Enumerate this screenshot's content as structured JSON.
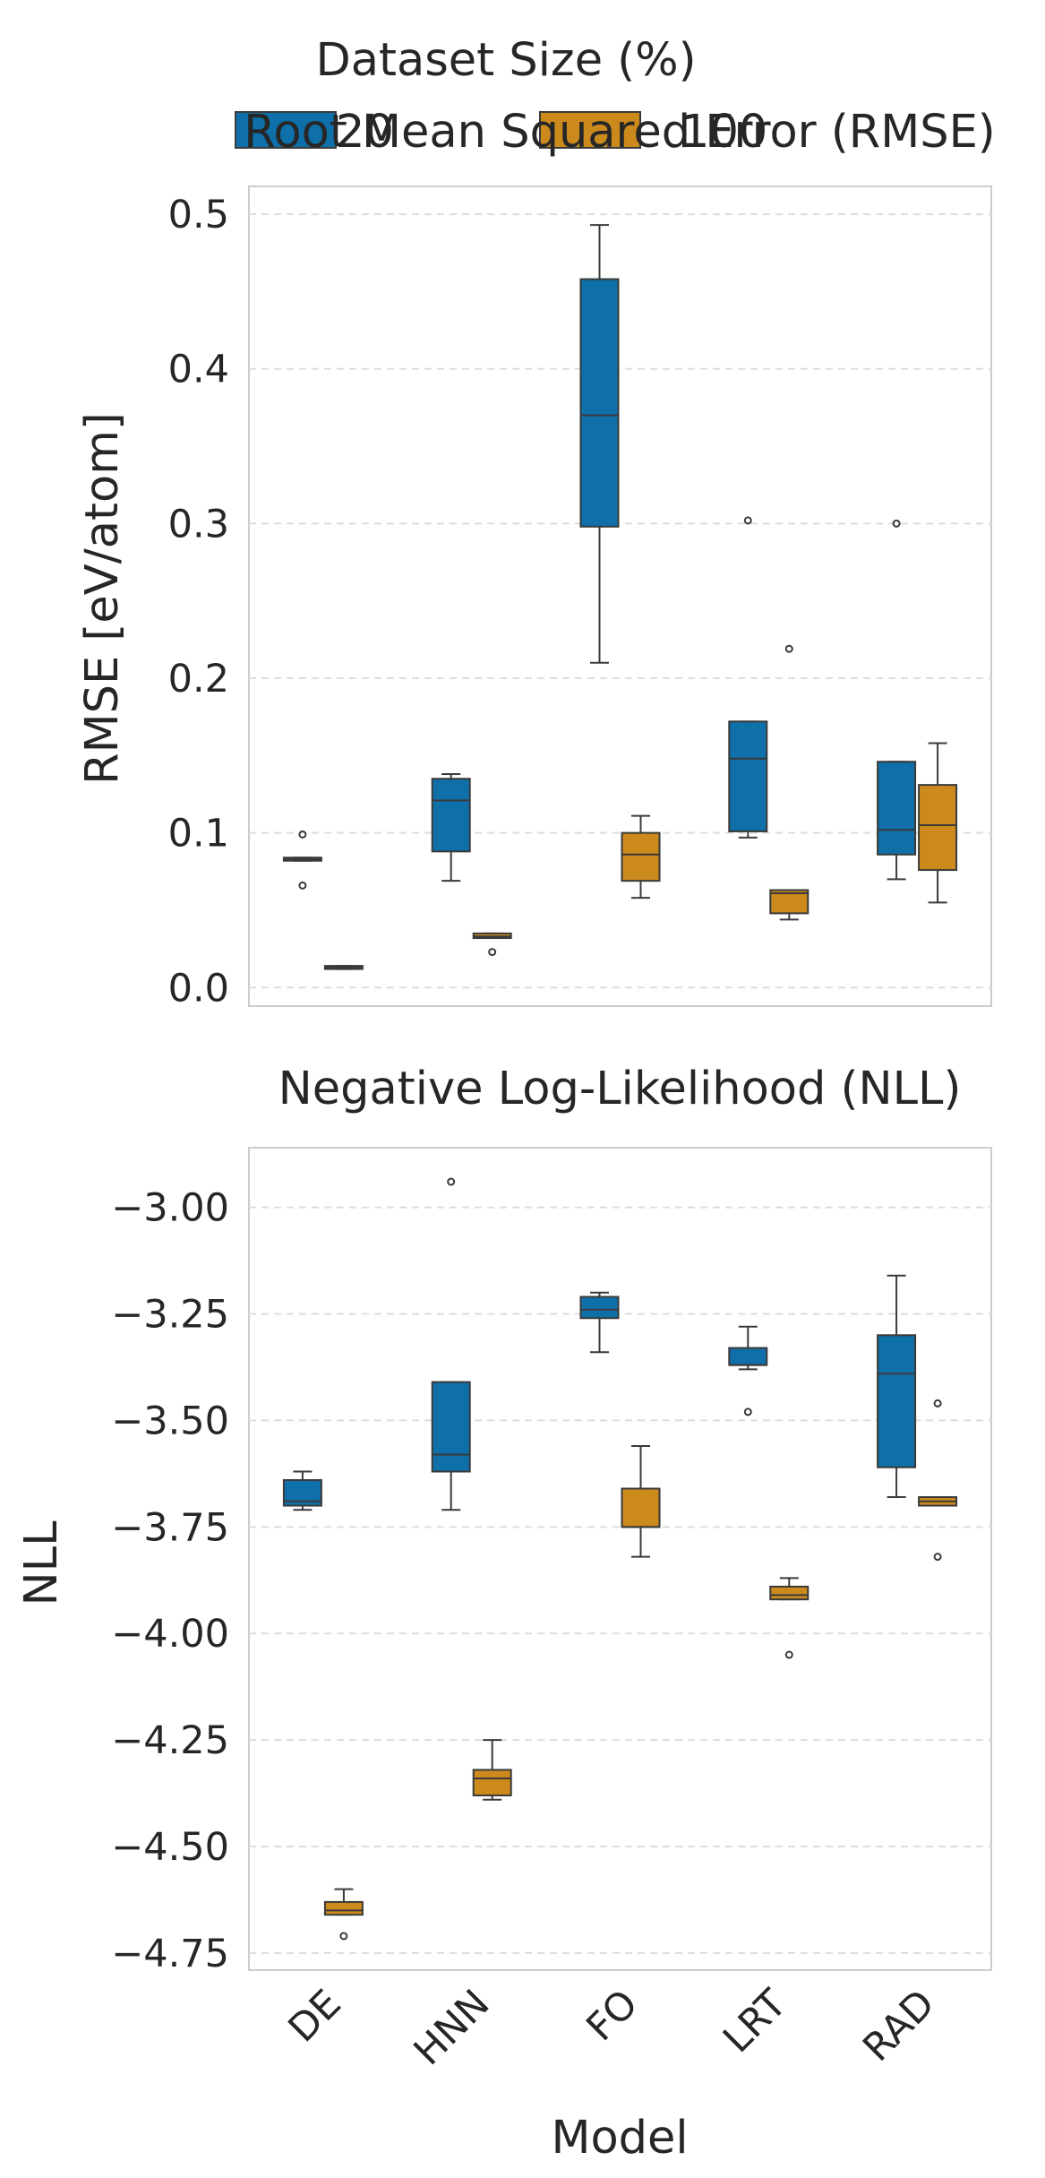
{
  "legend": {
    "title": "Dataset Size (%)",
    "entries": [
      {
        "label": "20",
        "color": "#0f6fa8"
      },
      {
        "label": "100",
        "color": "#cc8a1d"
      }
    ]
  },
  "chart_data": [
    {
      "type": "box",
      "title": "Root Mean Squared Error (RMSE)",
      "xlabel": "",
      "ylabel": "RMSE [eV/atom]",
      "categories": [
        "DE",
        "HNN",
        "FO",
        "LRT",
        "RAD"
      ],
      "ylim": [
        -0.012,
        0.518
      ],
      "yticks": [
        0.0,
        0.1,
        0.2,
        0.3,
        0.4,
        0.5
      ],
      "ytick_labels": [
        "0.0",
        "0.1",
        "0.2",
        "0.3",
        "0.4",
        "0.5"
      ],
      "grid": true,
      "series": [
        {
          "name": "20",
          "color": "#0f6fa8",
          "boxes": [
            {
              "category": "DE",
              "whisker_low": 0.082,
              "q1": 0.082,
              "median": 0.083,
              "q3": 0.084,
              "whisker_high": 0.084,
              "outliers": [
                0.099,
                0.066
              ]
            },
            {
              "category": "HNN",
              "whisker_low": 0.069,
              "q1": 0.088,
              "median": 0.121,
              "q3": 0.135,
              "whisker_high": 0.138,
              "outliers": []
            },
            {
              "category": "FO",
              "whisker_low": 0.21,
              "q1": 0.298,
              "median": 0.37,
              "q3": 0.458,
              "whisker_high": 0.493,
              "outliers": []
            },
            {
              "category": "LRT",
              "whisker_low": 0.097,
              "q1": 0.101,
              "median": 0.148,
              "q3": 0.172,
              "whisker_high": 0.172,
              "outliers": [
                0.302
              ]
            },
            {
              "category": "RAD",
              "whisker_low": 0.07,
              "q1": 0.086,
              "median": 0.102,
              "q3": 0.146,
              "whisker_high": 0.146,
              "outliers": [
                0.3
              ]
            }
          ]
        },
        {
          "name": "100",
          "color": "#cc8a1d",
          "boxes": [
            {
              "category": "DE",
              "whisker_low": 0.012,
              "q1": 0.012,
              "median": 0.013,
              "q3": 0.014,
              "whisker_high": 0.014,
              "outliers": []
            },
            {
              "category": "HNN",
              "whisker_low": 0.032,
              "q1": 0.032,
              "median": 0.033,
              "q3": 0.035,
              "whisker_high": 0.035,
              "outliers": [
                0.023
              ]
            },
            {
              "category": "FO",
              "whisker_low": 0.058,
              "q1": 0.069,
              "median": 0.086,
              "q3": 0.1,
              "whisker_high": 0.111,
              "outliers": []
            },
            {
              "category": "LRT",
              "whisker_low": 0.044,
              "q1": 0.048,
              "median": 0.061,
              "q3": 0.063,
              "whisker_high": 0.063,
              "outliers": [
                0.219
              ]
            },
            {
              "category": "RAD",
              "whisker_low": 0.055,
              "q1": 0.076,
              "median": 0.105,
              "q3": 0.131,
              "whisker_high": 0.158,
              "outliers": []
            }
          ]
        }
      ]
    },
    {
      "type": "box",
      "title": "Negative Log-Likelihood (NLL)",
      "xlabel": "Model",
      "ylabel": "NLL",
      "categories": [
        "DE",
        "HNN",
        "FO",
        "LRT",
        "RAD"
      ],
      "ylim": [
        -4.79,
        -2.86
      ],
      "yticks": [
        -3.0,
        -3.25,
        -3.5,
        -3.75,
        -4.0,
        -4.25,
        -4.5,
        -4.75
      ],
      "ytick_labels": [
        "−3.00",
        "−3.25",
        "−3.50",
        "−3.75",
        "−4.00",
        "−4.25",
        "−4.50",
        "−4.75"
      ],
      "grid": true,
      "series": [
        {
          "name": "20",
          "color": "#0f6fa8",
          "boxes": [
            {
              "category": "DE",
              "whisker_low": -3.71,
              "q1": -3.7,
              "median": -3.69,
              "q3": -3.64,
              "whisker_high": -3.62,
              "outliers": []
            },
            {
              "category": "HNN",
              "whisker_low": -3.71,
              "q1": -3.62,
              "median": -3.58,
              "q3": -3.41,
              "whisker_high": -3.41,
              "outliers": [
                -2.94
              ]
            },
            {
              "category": "FO",
              "whisker_low": -3.34,
              "q1": -3.26,
              "median": -3.24,
              "q3": -3.21,
              "whisker_high": -3.2,
              "outliers": []
            },
            {
              "category": "LRT",
              "whisker_low": -3.38,
              "q1": -3.37,
              "median": -3.37,
              "q3": -3.33,
              "whisker_high": -3.28,
              "outliers": [
                -3.48
              ]
            },
            {
              "category": "RAD",
              "whisker_low": -3.68,
              "q1": -3.61,
              "median": -3.39,
              "q3": -3.3,
              "whisker_high": -3.16,
              "outliers": []
            }
          ]
        },
        {
          "name": "100",
          "color": "#cc8a1d",
          "boxes": [
            {
              "category": "DE",
              "whisker_low": -4.66,
              "q1": -4.66,
              "median": -4.65,
              "q3": -4.63,
              "whisker_high": -4.6,
              "outliers": [
                -4.71
              ]
            },
            {
              "category": "HNN",
              "whisker_low": -4.39,
              "q1": -4.38,
              "median": -4.34,
              "q3": -4.32,
              "whisker_high": -4.25,
              "outliers": []
            },
            {
              "category": "FO",
              "whisker_low": -3.82,
              "q1": -3.75,
              "median": -3.75,
              "q3": -3.66,
              "whisker_high": -3.56,
              "outliers": []
            },
            {
              "category": "LRT",
              "whisker_low": -3.92,
              "q1": -3.92,
              "median": -3.91,
              "q3": -3.89,
              "whisker_high": -3.87,
              "outliers": [
                -4.05
              ]
            },
            {
              "category": "RAD",
              "whisker_low": -3.7,
              "q1": -3.7,
              "median": -3.69,
              "q3": -3.68,
              "whisker_high": -3.68,
              "outliers": [
                -3.46,
                -3.82
              ]
            }
          ]
        }
      ]
    }
  ]
}
